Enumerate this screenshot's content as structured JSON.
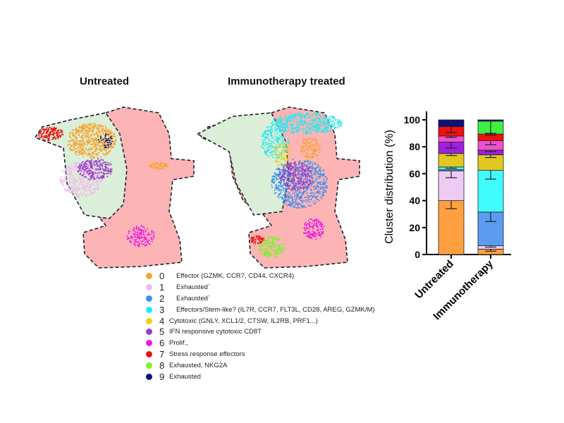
{
  "umap": {
    "titles": [
      "Untreated",
      "Immunotherapy treated"
    ]
  },
  "legend": [
    {
      "id": "0",
      "label": "Effector (GZMK, CCR7, CD44, CXCR4)",
      "color": "#f7a32a"
    },
    {
      "id": "1",
      "label": "Exhausted`",
      "color": "#f5b8ee"
    },
    {
      "id": "2",
      "label": "Exhausted`",
      "color": "#3a8ef0"
    },
    {
      "id": "3",
      "label": "Effectors/Stem-like? (IL7R, CCR7, FLT3L, CD28, AREG, GZMK/M)",
      "color": "#28e8f0"
    },
    {
      "id": "4",
      "label": "Cytotoxic (GNLY, XCL1/2, CTSW, IL2RB, PRF1...)",
      "color": "#f5cf10"
    },
    {
      "id": "5",
      "label": "IFN responsive cytotoxic CD8T",
      "color": "#9a3cc8"
    },
    {
      "id": "6",
      "label": "Prolif.,",
      "color": "#f018e8"
    },
    {
      "id": "7",
      "label": "Stress response effectors",
      "color": "#ee1010"
    },
    {
      "id": "8",
      "label": "Exhausted, NKG2A",
      "color": "#80f030"
    },
    {
      "id": "9",
      "label": "Exhausted",
      "color": "#0a1078"
    }
  ],
  "chart_data": {
    "type": "bar",
    "stacked": true,
    "ylabel": "Cluster distribution  (%)",
    "ylim": [
      0,
      100
    ],
    "yticks": [
      0,
      20,
      40,
      60,
      80,
      100
    ],
    "categories": [
      "Untreated",
      "Immunotherapy"
    ],
    "series": [
      {
        "name": "0",
        "color": "#ffa040",
        "values": [
          40,
          4
        ],
        "err_low": [
          34,
          2.5
        ]
      },
      {
        "name": "1",
        "color": "#ecccf4",
        "values": [
          22,
          2.5
        ],
        "err_low": [
          57,
          5.5
        ]
      },
      {
        "name": "2",
        "color": "#5a9cf0",
        "values": [
          1,
          25
        ],
        "err_low": [
          null,
          24.5
        ]
      },
      {
        "name": "3",
        "color": "#40fcfc",
        "values": [
          2,
          31
        ],
        "err_low": [
          64,
          56
        ]
      },
      {
        "name": "4",
        "color": "#e0c820",
        "values": [
          10,
          11.5
        ],
        "err_low": [
          73.5,
          72
        ]
      },
      {
        "name": "5",
        "color": "#a020e0",
        "values": [
          8.5,
          3.5
        ],
        "err_low": [
          79,
          76.5
        ]
      },
      {
        "name": "6",
        "color": "#f050d0",
        "values": [
          4.5,
          7
        ],
        "err_low": [
          87,
          81.5
        ]
      },
      {
        "name": "7",
        "color": "#f01010",
        "values": [
          7,
          5
        ],
        "err_low": [
          90.5,
          88.5
        ]
      },
      {
        "name": "8",
        "color": "#40f040",
        "values": [
          0,
          9.5
        ],
        "err_low": [
          null,
          90
        ]
      },
      {
        "name": "9",
        "color": "#0a1080",
        "values": [
          5,
          1
        ],
        "err_low": [
          98,
          null
        ]
      }
    ]
  }
}
